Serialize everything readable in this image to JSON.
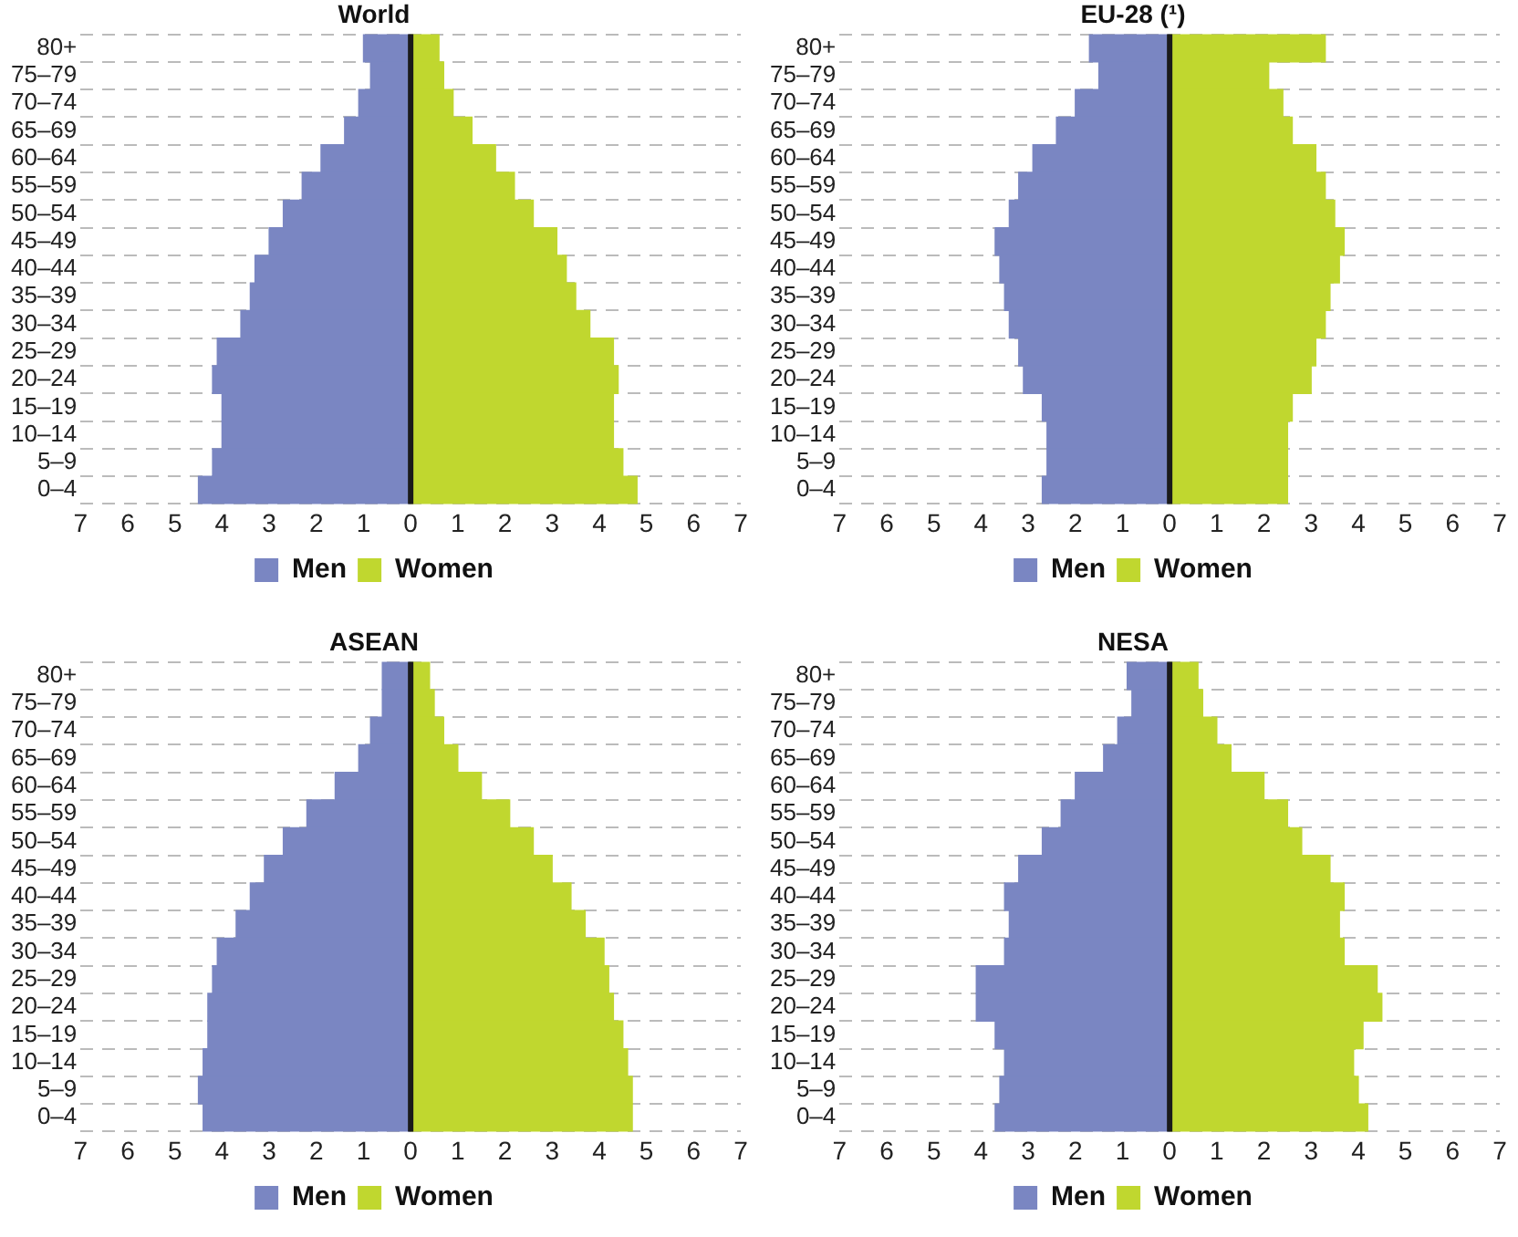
{
  "chart_data": [
    {
      "type": "bar",
      "title": "World",
      "orientation": "horizontal",
      "stacked": true,
      "grid": "y",
      "legend": "bottom",
      "categories": [
        "80+",
        "75–79",
        "70–74",
        "65–69",
        "60–64",
        "55–59",
        "50–54",
        "45–49",
        "40–44",
        "35–39",
        "30–34",
        "25–29",
        "20–24",
        "15–19",
        "10–14",
        "5–9",
        "0–4"
      ],
      "series": [
        {
          "name": "Men",
          "color": "#7a86c2",
          "values": [
            -1.0,
            -0.85,
            -1.1,
            -1.4,
            -1.9,
            -2.3,
            -2.7,
            -3.0,
            -3.3,
            -3.4,
            -3.6,
            -4.1,
            -4.2,
            -4.0,
            -4.0,
            -4.2,
            -4.5
          ]
        },
        {
          "name": "Women",
          "color": "#c0d72f",
          "values": [
            0.6,
            0.7,
            0.9,
            1.3,
            1.8,
            2.2,
            2.6,
            3.1,
            3.3,
            3.5,
            3.8,
            4.3,
            4.4,
            4.3,
            4.3,
            4.5,
            4.8
          ]
        }
      ],
      "xlim": [
        -7,
        7
      ],
      "xticks": [
        {
          "value": -7,
          "label": "7"
        },
        {
          "value": -6,
          "label": "6"
        },
        {
          "value": -5,
          "label": "5"
        },
        {
          "value": -4,
          "label": "4"
        },
        {
          "value": -3,
          "label": "3"
        },
        {
          "value": -2,
          "label": "2"
        },
        {
          "value": -1,
          "label": "1"
        },
        0,
        1,
        2,
        3,
        4,
        5,
        6,
        7
      ],
      "ref_lines": [
        {
          "axis": "x",
          "value": 0,
          "color": "#1a1a1a"
        }
      ]
    },
    {
      "type": "bar",
      "title": "EU-28 (¹)",
      "orientation": "horizontal",
      "stacked": true,
      "grid": "y",
      "legend": "bottom",
      "categories": [
        "80+",
        "75–79",
        "70–74",
        "65–69",
        "60–64",
        "55–59",
        "50–54",
        "45–49",
        "40–44",
        "35–39",
        "30–34",
        "25–29",
        "20–24",
        "15–19",
        "10–14",
        "5–9",
        "0–4"
      ],
      "series": [
        {
          "name": "Men",
          "color": "#7a86c2",
          "values": [
            -1.7,
            -1.5,
            -2.0,
            -2.4,
            -2.9,
            -3.2,
            -3.4,
            -3.7,
            -3.6,
            -3.5,
            -3.4,
            -3.2,
            -3.1,
            -2.7,
            -2.6,
            -2.6,
            -2.7
          ]
        },
        {
          "name": "Women",
          "color": "#c0d72f",
          "values": [
            3.3,
            2.1,
            2.4,
            2.6,
            3.1,
            3.3,
            3.5,
            3.7,
            3.6,
            3.4,
            3.3,
            3.1,
            3.0,
            2.6,
            2.5,
            2.5,
            2.5
          ]
        }
      ],
      "xlim": [
        -7,
        7
      ],
      "xticks": [
        {
          "value": -7,
          "label": "7"
        },
        {
          "value": -6,
          "label": "6"
        },
        {
          "value": -5,
          "label": "5"
        },
        {
          "value": -4,
          "label": "4"
        },
        {
          "value": -3,
          "label": "3"
        },
        {
          "value": -2,
          "label": "2"
        },
        {
          "value": -1,
          "label": "1"
        },
        0,
        1,
        2,
        3,
        4,
        5,
        6,
        7
      ],
      "ref_lines": [
        {
          "axis": "x",
          "value": 0,
          "color": "#1a1a1a"
        }
      ]
    },
    {
      "type": "bar",
      "title": "ASEAN",
      "orientation": "horizontal",
      "stacked": true,
      "grid": "y",
      "legend": "bottom",
      "categories": [
        "80+",
        "75–79",
        "70–74",
        "65–69",
        "60–64",
        "55–59",
        "50–54",
        "45–49",
        "40–44",
        "35–39",
        "30–34",
        "25–29",
        "20–24",
        "15–19",
        "10–14",
        "5–9",
        "0–4"
      ],
      "series": [
        {
          "name": "Men",
          "color": "#7a86c2",
          "values": [
            -0.6,
            -0.6,
            -0.85,
            -1.1,
            -1.6,
            -2.2,
            -2.7,
            -3.1,
            -3.4,
            -3.7,
            -4.1,
            -4.2,
            -4.3,
            -4.3,
            -4.4,
            -4.5,
            -4.4
          ]
        },
        {
          "name": "Women",
          "color": "#c0d72f",
          "values": [
            0.4,
            0.5,
            0.7,
            1.0,
            1.5,
            2.1,
            2.6,
            3.0,
            3.4,
            3.7,
            4.1,
            4.2,
            4.3,
            4.5,
            4.6,
            4.7,
            4.7
          ]
        }
      ],
      "xlim": [
        -7,
        7
      ],
      "xticks": [
        {
          "value": -7,
          "label": "7"
        },
        {
          "value": -6,
          "label": "6"
        },
        {
          "value": -5,
          "label": "5"
        },
        {
          "value": -4,
          "label": "4"
        },
        {
          "value": -3,
          "label": "3"
        },
        {
          "value": -2,
          "label": "2"
        },
        {
          "value": -1,
          "label": "1"
        },
        0,
        1,
        2,
        3,
        4,
        5,
        6,
        7
      ],
      "ref_lines": [
        {
          "axis": "x",
          "value": 0,
          "color": "#1a1a1a"
        }
      ]
    },
    {
      "type": "bar",
      "title": "NESA",
      "orientation": "horizontal",
      "stacked": true,
      "grid": "y",
      "legend": "bottom",
      "categories": [
        "80+",
        "75–79",
        "70–74",
        "65–69",
        "60–64",
        "55–59",
        "50–54",
        "45–49",
        "40–44",
        "35–39",
        "30–34",
        "25–29",
        "20–24",
        "15–19",
        "10–14",
        "5–9",
        "0–4"
      ],
      "series": [
        {
          "name": "Men",
          "color": "#7a86c2",
          "values": [
            -0.9,
            -0.8,
            -1.1,
            -1.4,
            -2.0,
            -2.3,
            -2.7,
            -3.2,
            -3.5,
            -3.4,
            -3.5,
            -4.1,
            -4.1,
            -3.7,
            -3.5,
            -3.6,
            -3.7
          ]
        },
        {
          "name": "Women",
          "color": "#c0d72f",
          "values": [
            0.6,
            0.7,
            1.0,
            1.3,
            2.0,
            2.5,
            2.8,
            3.4,
            3.7,
            3.6,
            3.7,
            4.4,
            4.5,
            4.1,
            3.9,
            4.0,
            4.2
          ]
        }
      ],
      "xlim": [
        -7,
        7
      ],
      "xticks": [
        {
          "value": -7,
          "label": "7"
        },
        {
          "value": -6,
          "label": "6"
        },
        {
          "value": -5,
          "label": "5"
        },
        {
          "value": -4,
          "label": "4"
        },
        {
          "value": -3,
          "label": "3"
        },
        {
          "value": -2,
          "label": "2"
        },
        {
          "value": -1,
          "label": "1"
        },
        0,
        1,
        2,
        3,
        4,
        5,
        6,
        7
      ],
      "ref_lines": [
        {
          "axis": "x",
          "value": 0,
          "color": "#1a1a1a"
        }
      ]
    }
  ]
}
